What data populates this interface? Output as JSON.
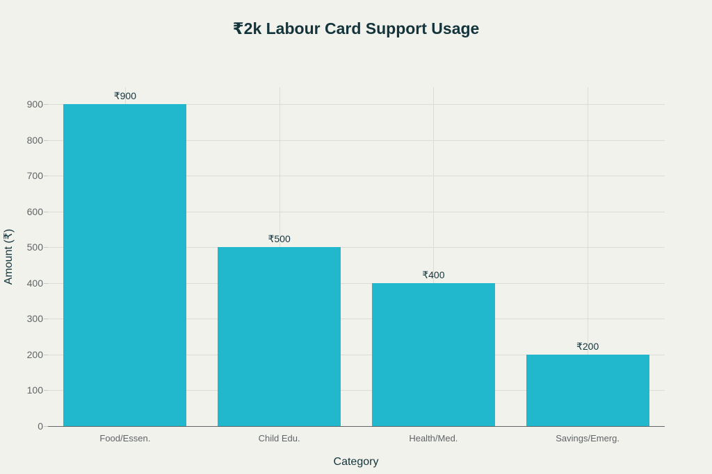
{
  "chart_data": {
    "type": "bar",
    "title": "₹2k Labour Card Support Usage",
    "xlabel": "Category",
    "ylabel": "Amount (₹)",
    "categories": [
      "Food/Essen.",
      "Child Edu.",
      "Health/Med.",
      "Savings/Emerg."
    ],
    "values": [
      900,
      500,
      400,
      200
    ],
    "data_labels": [
      "₹900",
      "₹500",
      "₹400",
      "₹200"
    ],
    "ylim": [
      0,
      945
    ],
    "yticks": [
      0,
      100,
      200,
      300,
      400,
      500,
      600,
      700,
      800,
      900
    ],
    "grid": true,
    "legend": null,
    "colors": {
      "bar": "#21b8cd",
      "background": "#f2f2ed",
      "text": "#13343b"
    }
  }
}
